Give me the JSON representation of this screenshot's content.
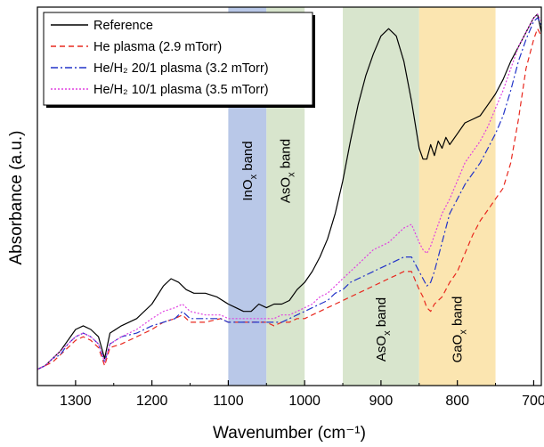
{
  "chart_data": {
    "type": "line",
    "xlabel": "Wavenumber (cm⁻¹)",
    "ylabel": "Absorbance (a.u.)",
    "xlim": [
      1350,
      690
    ],
    "ylim": [
      0,
      1
    ],
    "x_reversed": true,
    "xticks": [
      1300,
      1200,
      1100,
      1000,
      900,
      800,
      700
    ],
    "xtick_labels": [
      "1300",
      "1200",
      "1100",
      "1000",
      "900",
      "800",
      "700"
    ],
    "legend_position": "top-left",
    "bands": [
      {
        "label": "InO",
        "sub": "x",
        "suffix": " band",
        "from": 1100,
        "to": 1050,
        "color": "#b9c8e8",
        "label_pos": "top"
      },
      {
        "label": "AsO",
        "sub": "x",
        "suffix": " band",
        "from": 1050,
        "to": 1000,
        "color": "#d8e5cd",
        "label_pos": "top"
      },
      {
        "label": "AsO",
        "sub": "x",
        "suffix": " band",
        "from": 950,
        "to": 850,
        "color": "#d8e5cd",
        "label_pos": "bottom"
      },
      {
        "label": "GaO",
        "sub": "x",
        "suffix": " band",
        "from": 850,
        "to": 750,
        "color": "#fbe5b0",
        "label_pos": "bottom"
      }
    ],
    "series": [
      {
        "name": "Reference",
        "color": "#000000",
        "dash": "",
        "x": [
          1350,
          1340,
          1330,
          1320,
          1310,
          1300,
          1290,
          1280,
          1270,
          1262,
          1255,
          1240,
          1220,
          1200,
          1185,
          1175,
          1165,
          1155,
          1145,
          1130,
          1115,
          1100,
          1090,
          1080,
          1070,
          1060,
          1050,
          1040,
          1030,
          1020,
          1010,
          1000,
          990,
          980,
          970,
          960,
          950,
          940,
          930,
          920,
          910,
          900,
          890,
          880,
          870,
          860,
          850,
          845,
          840,
          835,
          830,
          825,
          820,
          815,
          810,
          800,
          790,
          780,
          770,
          760,
          750,
          740,
          730,
          720,
          710,
          700,
          695,
          690
        ],
        "y": [
          0.03,
          0.04,
          0.06,
          0.08,
          0.11,
          0.14,
          0.15,
          0.14,
          0.12,
          0.06,
          0.13,
          0.15,
          0.17,
          0.21,
          0.26,
          0.28,
          0.27,
          0.25,
          0.24,
          0.24,
          0.23,
          0.21,
          0.2,
          0.19,
          0.19,
          0.21,
          0.2,
          0.21,
          0.21,
          0.22,
          0.25,
          0.27,
          0.3,
          0.34,
          0.39,
          0.46,
          0.55,
          0.66,
          0.76,
          0.84,
          0.9,
          0.95,
          0.97,
          0.95,
          0.88,
          0.77,
          0.64,
          0.61,
          0.61,
          0.65,
          0.62,
          0.66,
          0.64,
          0.67,
          0.65,
          0.68,
          0.71,
          0.72,
          0.73,
          0.76,
          0.79,
          0.83,
          0.88,
          0.92,
          0.96,
          1.0,
          1.01,
          0.96
        ]
      },
      {
        "name": "He plasma (2.9 mTorr)",
        "color": "#e8281e",
        "dash": "6,4",
        "x": [
          1350,
          1340,
          1330,
          1320,
          1310,
          1300,
          1290,
          1280,
          1270,
          1262,
          1255,
          1240,
          1220,
          1200,
          1185,
          1170,
          1160,
          1150,
          1130,
          1110,
          1100,
          1080,
          1060,
          1050,
          1040,
          1030,
          1020,
          1010,
          1000,
          990,
          980,
          970,
          960,
          950,
          940,
          930,
          920,
          910,
          900,
          890,
          880,
          870,
          860,
          850,
          845,
          840,
          835,
          830,
          820,
          810,
          800,
          790,
          780,
          770,
          760,
          750,
          740,
          730,
          720,
          710,
          700,
          695,
          690
        ],
        "y": [
          0.03,
          0.04,
          0.05,
          0.07,
          0.09,
          0.11,
          0.12,
          0.11,
          0.09,
          0.04,
          0.09,
          0.1,
          0.12,
          0.14,
          0.16,
          0.17,
          0.18,
          0.16,
          0.16,
          0.17,
          0.16,
          0.16,
          0.16,
          0.16,
          0.15,
          0.16,
          0.16,
          0.17,
          0.17,
          0.18,
          0.19,
          0.2,
          0.21,
          0.22,
          0.23,
          0.24,
          0.25,
          0.26,
          0.27,
          0.28,
          0.29,
          0.3,
          0.3,
          0.25,
          0.23,
          0.2,
          0.19,
          0.21,
          0.23,
          0.27,
          0.3,
          0.35,
          0.4,
          0.44,
          0.47,
          0.5,
          0.53,
          0.6,
          0.72,
          0.86,
          0.94,
          0.97,
          0.95
        ]
      },
      {
        "name": "He/H₂ 20/1 plasma (3.2 mTorr)",
        "color": "#2233c8",
        "dash": "8,3,2,3",
        "x": [
          1350,
          1340,
          1330,
          1320,
          1310,
          1300,
          1290,
          1280,
          1270,
          1262,
          1255,
          1240,
          1220,
          1200,
          1185,
          1170,
          1160,
          1150,
          1130,
          1110,
          1100,
          1080,
          1060,
          1050,
          1040,
          1030,
          1020,
          1010,
          1000,
          990,
          980,
          970,
          960,
          950,
          940,
          930,
          920,
          910,
          900,
          890,
          880,
          870,
          860,
          850,
          845,
          840,
          835,
          830,
          820,
          810,
          800,
          790,
          780,
          770,
          760,
          750,
          740,
          730,
          720,
          710,
          700,
          695,
          690
        ],
        "y": [
          0.03,
          0.04,
          0.06,
          0.07,
          0.1,
          0.12,
          0.13,
          0.12,
          0.1,
          0.05,
          0.1,
          0.12,
          0.13,
          0.15,
          0.16,
          0.17,
          0.19,
          0.17,
          0.17,
          0.17,
          0.16,
          0.16,
          0.16,
          0.16,
          0.16,
          0.16,
          0.17,
          0.18,
          0.19,
          0.2,
          0.21,
          0.22,
          0.24,
          0.25,
          0.27,
          0.28,
          0.29,
          0.3,
          0.31,
          0.32,
          0.33,
          0.34,
          0.34,
          0.3,
          0.28,
          0.26,
          0.27,
          0.3,
          0.38,
          0.46,
          0.5,
          0.54,
          0.57,
          0.6,
          0.64,
          0.68,
          0.73,
          0.8,
          0.88,
          0.94,
          0.99,
          1.0,
          0.98
        ]
      },
      {
        "name": "He/H₂ 10/1 plasma (3.5 mTorr)",
        "color": "#e040e0",
        "dash": "2,2",
        "x": [
          1350,
          1340,
          1330,
          1320,
          1310,
          1300,
          1290,
          1280,
          1270,
          1262,
          1255,
          1240,
          1220,
          1200,
          1185,
          1170,
          1160,
          1150,
          1130,
          1110,
          1100,
          1080,
          1060,
          1050,
          1040,
          1030,
          1020,
          1010,
          1000,
          990,
          980,
          970,
          960,
          950,
          940,
          930,
          920,
          910,
          900,
          890,
          880,
          870,
          860,
          850,
          845,
          840,
          835,
          830,
          820,
          810,
          800,
          790,
          780,
          770,
          760,
          750,
          740,
          730,
          720,
          710,
          700,
          695,
          690
        ],
        "y": [
          0.03,
          0.04,
          0.06,
          0.08,
          0.1,
          0.12,
          0.13,
          0.12,
          0.1,
          0.05,
          0.1,
          0.12,
          0.14,
          0.17,
          0.19,
          0.2,
          0.21,
          0.19,
          0.18,
          0.18,
          0.17,
          0.17,
          0.17,
          0.17,
          0.17,
          0.18,
          0.18,
          0.19,
          0.2,
          0.21,
          0.23,
          0.24,
          0.26,
          0.28,
          0.3,
          0.32,
          0.34,
          0.36,
          0.37,
          0.38,
          0.4,
          0.42,
          0.43,
          0.38,
          0.36,
          0.35,
          0.37,
          0.4,
          0.46,
          0.5,
          0.55,
          0.6,
          0.63,
          0.66,
          0.7,
          0.75,
          0.8,
          0.86,
          0.92,
          0.96,
          1.0,
          1.01,
          0.99
        ]
      }
    ]
  }
}
